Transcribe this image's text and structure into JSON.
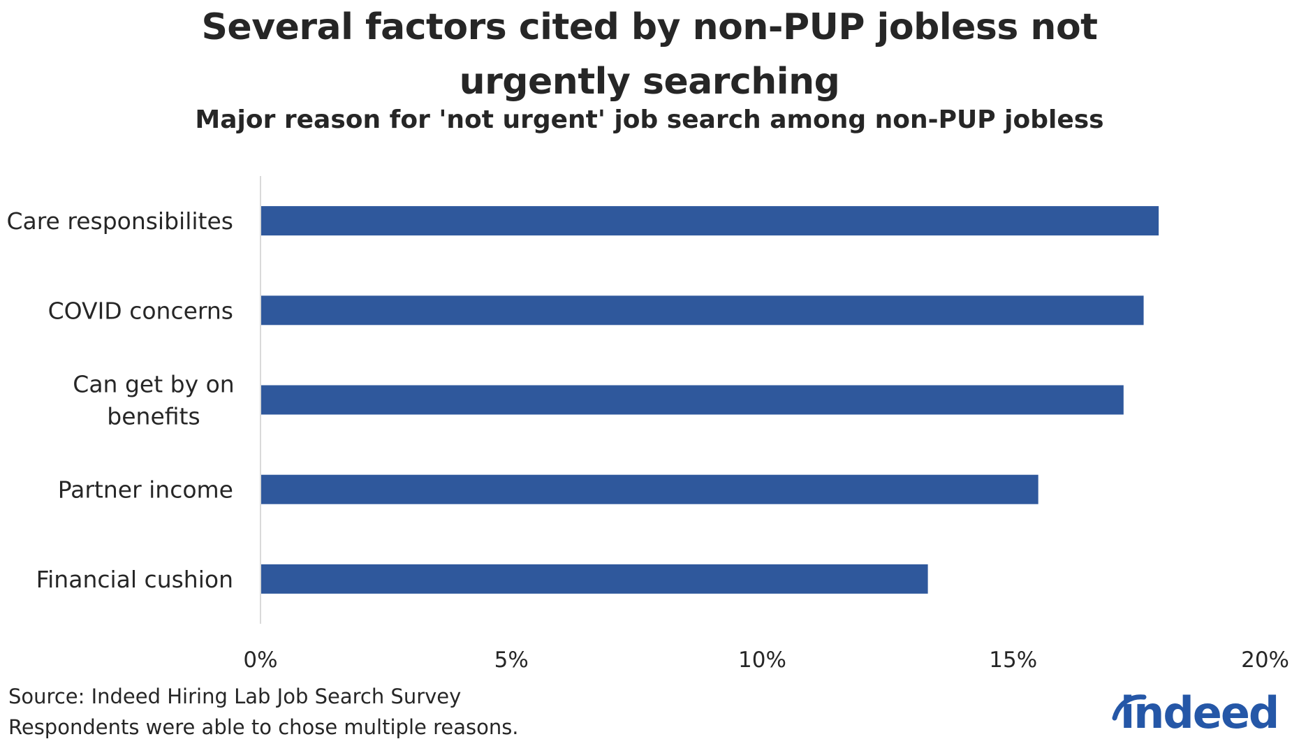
{
  "title": "Several factors cited by non-PUP jobless not urgently searching",
  "subtitle": "Major reason for 'not urgent' job search among non-PUP jobless",
  "source_lines": [
    "Source: Indeed Hiring Lab Job Search Survey",
    "Respondents were able to chose multiple reasons."
  ],
  "logo": {
    "text": "indeed",
    "icon": "indeed-logo-arc-icon",
    "color": "#2557a7"
  },
  "colors": {
    "bar": "#2f589c",
    "axis": "#d9d9d9",
    "text": "#262626"
  },
  "chart_data": {
    "type": "bar",
    "orientation": "horizontal",
    "categories": [
      "Care responsibilites",
      "COVID concerns",
      "Can get by on benefits",
      "Partner income",
      "Financial cushion"
    ],
    "category_label_lines": [
      [
        "Care responsibilites"
      ],
      [
        "COVID concerns"
      ],
      [
        "Can get by on",
        "benefits"
      ],
      [
        "Partner income"
      ],
      [
        "Financial cushion"
      ]
    ],
    "values": [
      17.9,
      17.6,
      17.2,
      15.5,
      13.3
    ],
    "value_unit": "%",
    "xlim": [
      0,
      20
    ],
    "x_ticks": [
      0,
      5,
      10,
      15,
      20
    ],
    "x_tick_labels": [
      "0%",
      "5%",
      "10%",
      "15%",
      "20%"
    ],
    "xlabel": "",
    "ylabel": "",
    "grid": false,
    "legend": "none"
  }
}
